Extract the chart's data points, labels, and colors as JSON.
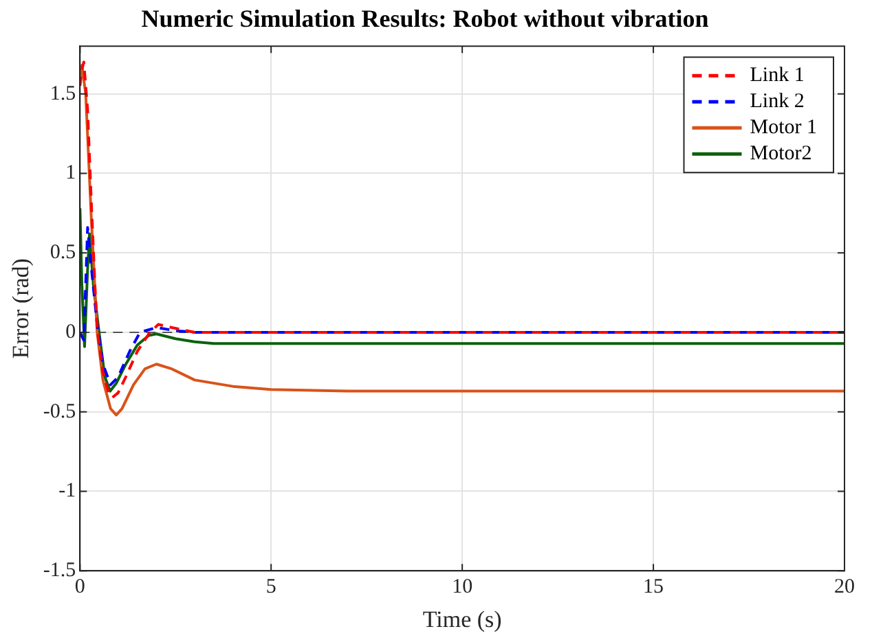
{
  "chart_data": {
    "type": "line",
    "title": "Numeric Simulation Results: Robot without vibration",
    "xlabel": "Time (s)",
    "ylabel": "Error (rad)",
    "xlim": [
      0,
      20
    ],
    "xticks": [
      0,
      5,
      10,
      15,
      20
    ],
    "ylim": [
      -1.5,
      1.8
    ],
    "yticks": [
      -1.5,
      -1,
      -0.5,
      0,
      0.5,
      1,
      1.5
    ],
    "grid": true,
    "legend": "top right",
    "marker": "none",
    "ref_lines": [
      {
        "axis": "y",
        "value": 0,
        "color": "#555555",
        "line_style": "dashed"
      }
    ],
    "series": [
      {
        "name": "Link 1",
        "color": "#ff0000",
        "line_style": "dashed",
        "x": [
          0,
          0.05,
          0.1,
          0.2,
          0.3,
          0.4,
          0.46,
          0.6,
          0.75,
          0.85,
          1.0,
          1.2,
          1.5,
          1.8,
          2.05,
          2.4,
          3.0,
          20
        ],
        "values": [
          1.55,
          1.65,
          1.7,
          1.4,
          0.8,
          0.25,
          0,
          -0.25,
          -0.38,
          -0.41,
          -0.38,
          -0.28,
          -0.12,
          -0.01,
          0.05,
          0.03,
          0,
          0
        ]
      },
      {
        "name": "Link 2",
        "color": "#0000ff",
        "line_style": "dashed",
        "x": [
          0,
          0.1,
          0.2,
          0.3,
          0.45,
          0.6,
          0.8,
          1.0,
          1.3,
          1.57,
          2.0,
          2.5,
          3.0,
          20
        ],
        "values": [
          0,
          -0.05,
          0.66,
          0.4,
          0.05,
          -0.2,
          -0.33,
          -0.28,
          -0.12,
          0,
          0.03,
          0.01,
          0,
          0
        ]
      },
      {
        "name": "Motor 1",
        "color": "#d95319",
        "line_style": "solid",
        "x": [
          0,
          0.05,
          0.15,
          0.3,
          0.45,
          0.6,
          0.8,
          0.95,
          1.1,
          1.4,
          1.7,
          2.0,
          2.4,
          3.0,
          4.0,
          5.0,
          7,
          20
        ],
        "values": [
          1.6,
          1.68,
          1.5,
          0.7,
          0,
          -0.3,
          -0.48,
          -0.52,
          -0.48,
          -0.33,
          -0.23,
          -0.2,
          -0.23,
          -0.3,
          -0.34,
          -0.36,
          -0.37,
          -0.37
        ]
      },
      {
        "name": "Motor2",
        "color": "#0b610b",
        "line_style": "solid",
        "x": [
          0,
          0.05,
          0.12,
          0.2,
          0.25,
          0.35,
          0.5,
          0.65,
          0.79,
          0.95,
          1.2,
          1.5,
          1.8,
          2.0,
          2.5,
          3.0,
          3.5,
          20
        ],
        "values": [
          0.78,
          0.3,
          -0.09,
          0.4,
          0.62,
          0.3,
          0,
          -0.28,
          -0.37,
          -0.32,
          -0.2,
          -0.08,
          -0.02,
          -0.01,
          -0.04,
          -0.06,
          -0.07,
          -0.07
        ]
      }
    ]
  }
}
